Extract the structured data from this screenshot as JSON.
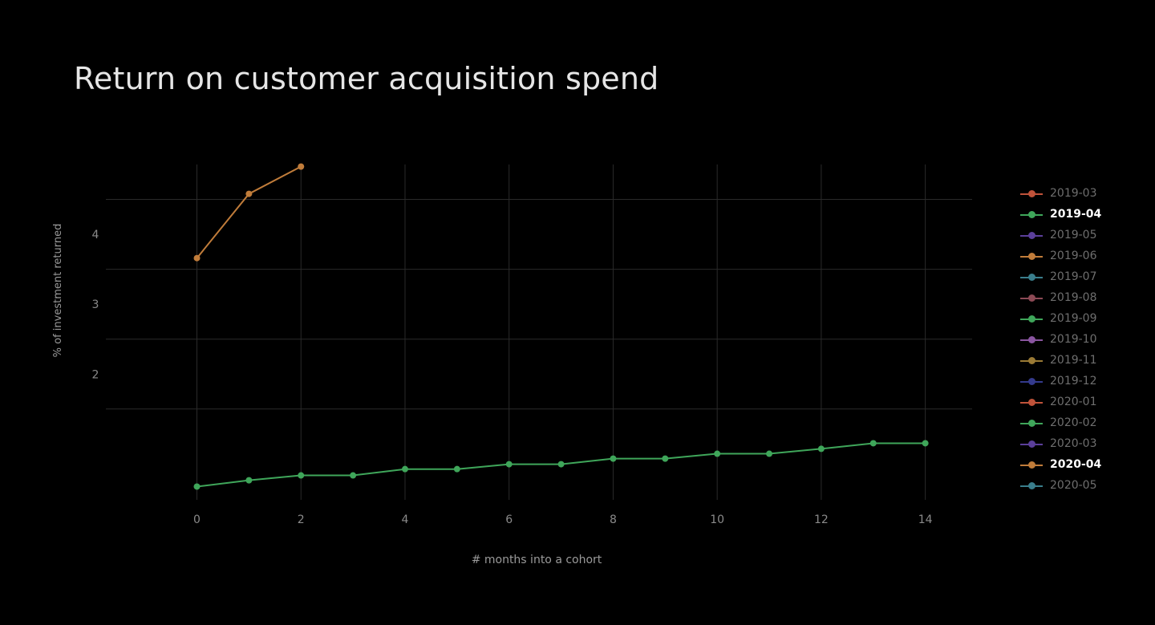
{
  "title": "Return on customer acquisition spend",
  "chart_data": {
    "type": "line",
    "title": "Return on customer acquisition spend",
    "xlabel": "# months into a cohort",
    "ylabel": "% of investment returned",
    "x_ticks": [
      0,
      2,
      4,
      6,
      8,
      10,
      12,
      14
    ],
    "y_ticks": [
      2,
      3,
      4
    ],
    "xlim": [
      -1.75,
      14.9
    ],
    "ylim": [
      0.2,
      5.0
    ],
    "grid": true,
    "legend_position": "right",
    "legend": [
      {
        "name": "2019-03",
        "color": "#c0533a",
        "active": false
      },
      {
        "name": "2019-04",
        "color": "#3fa65a",
        "active": true
      },
      {
        "name": "2019-05",
        "color": "#5b3f9a",
        "active": false
      },
      {
        "name": "2019-06",
        "color": "#c07c3a",
        "active": false
      },
      {
        "name": "2019-07",
        "color": "#3a7e8c",
        "active": false
      },
      {
        "name": "2019-08",
        "color": "#8c4a55",
        "active": false
      },
      {
        "name": "2019-09",
        "color": "#3fa65a",
        "active": false
      },
      {
        "name": "2019-10",
        "color": "#8a55a0",
        "active": false
      },
      {
        "name": "2019-11",
        "color": "#9a7a35",
        "active": false
      },
      {
        "name": "2019-12",
        "color": "#343a8c",
        "active": false
      },
      {
        "name": "2020-01",
        "color": "#c0533a",
        "active": false
      },
      {
        "name": "2020-02",
        "color": "#3fa65a",
        "active": false
      },
      {
        "name": "2020-03",
        "color": "#5b3f9a",
        "active": false
      },
      {
        "name": "2020-04",
        "color": "#c07c3a",
        "active": true
      },
      {
        "name": "2020-05",
        "color": "#3a7e8c",
        "active": false
      }
    ],
    "series": [
      {
        "name": "2019-04",
        "color": "#3fa65a",
        "x": [
          0,
          1,
          2,
          3,
          4,
          5,
          6,
          7,
          8,
          9,
          10,
          11,
          12,
          13,
          14
        ],
        "y": [
          0.39,
          0.48,
          0.55,
          0.55,
          0.64,
          0.64,
          0.71,
          0.71,
          0.79,
          0.79,
          0.86,
          0.86,
          0.93,
          1.01,
          1.01
        ]
      },
      {
        "name": "2020-04",
        "color": "#c07c3a",
        "x": [
          0,
          1,
          2
        ],
        "y": [
          3.66,
          4.58,
          4.97
        ]
      }
    ]
  }
}
